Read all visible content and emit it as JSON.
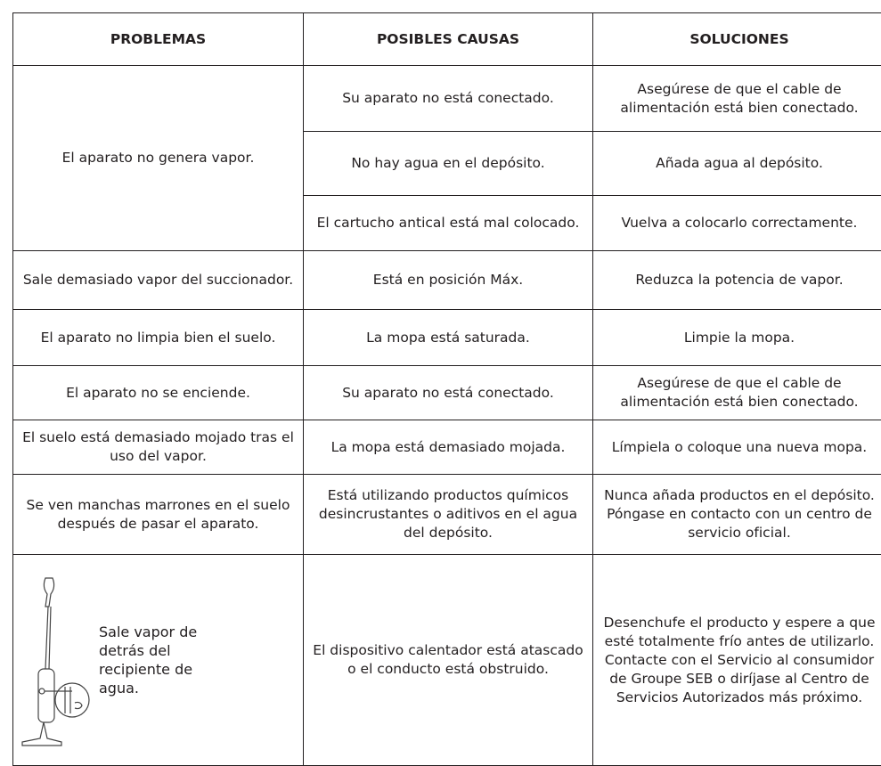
{
  "table": {
    "headers": [
      "PROBLEMAS",
      "POSIBLES CAUSAS",
      "SOLUCIONES"
    ],
    "rows": [
      {
        "problem": "El aparato no genera vapor.",
        "causes": [
          {
            "cause": "Su aparato no está conectado.",
            "solution": "Asegúrese de que el cable de alimentación está bien conectado."
          },
          {
            "cause": "No hay agua en el depósito.",
            "solution": "Añada agua al depósito."
          },
          {
            "cause": "El cartucho antical está mal colocado.",
            "solution": "Vuelva a colocarlo correctamente."
          }
        ]
      },
      {
        "problem": "Sale demasiado vapor del succionador.",
        "causes": [
          {
            "cause": "Está en posición Máx.",
            "solution": "Reduzca la potencia de vapor."
          }
        ]
      },
      {
        "problem": "El aparato no limpia bien el suelo.",
        "causes": [
          {
            "cause": "La mopa está saturada.",
            "solution": "Limpie la mopa."
          }
        ]
      },
      {
        "problem": "El aparato no se enciende.",
        "causes": [
          {
            "cause": "Su aparato no está conectado.",
            "solution": "Asegúrese de que el cable de alimentación está bien conectado."
          }
        ]
      },
      {
        "problem": "El suelo está demasiado mojado tras el uso del vapor.",
        "causes": [
          {
            "cause": "La mopa está demasiado mojada.",
            "solution": "Límpiela o coloque una nueva mopa."
          }
        ]
      },
      {
        "problem": "Se ven manchas marrones en el suelo después de pasar el aparato.",
        "causes": [
          {
            "cause": "Está utilizando productos químicos desincrustantes o aditivos en el agua del depósito.",
            "solution": "Nunca añada productos en el depósito. Póngase en contacto con un centro de servicio oficial."
          }
        ]
      },
      {
        "problem": "Sale vapor de detrás del recipiente de agua.",
        "causes": [
          {
            "cause": "El dispositivo calentador está atascado o el conducto está obstruido.",
            "solution": [
              "Desenchufe el producto y espere a que esté totalmente frío antes de utilizarlo.",
              "Contacte con el Servicio al consumidor de Groupe SEB o diríjase al Centro de Servicios Autorizados más próximo."
            ]
          }
        ]
      }
    ]
  }
}
